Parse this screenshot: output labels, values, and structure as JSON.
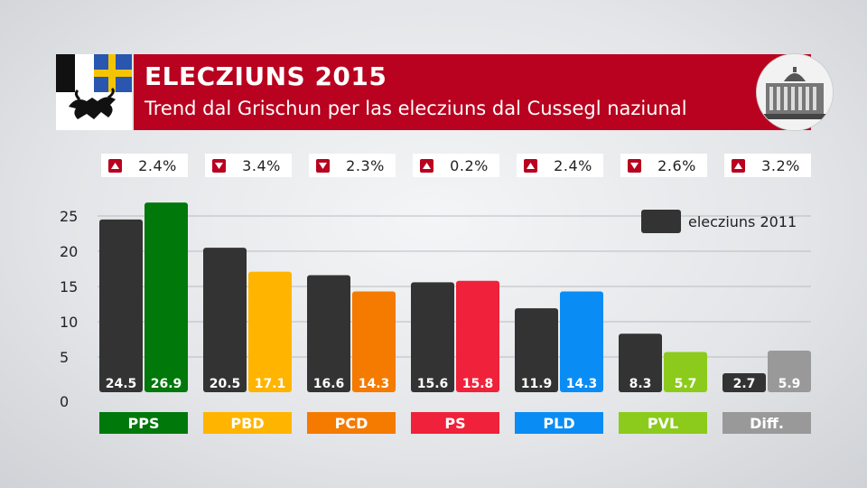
{
  "header": {
    "title": "ELECZIUNS 2015",
    "subtitle": "Trend dal Grischun per las elecziuns dal Cussegl naziunal"
  },
  "colors": {
    "banner": "#b8021f",
    "previous": "#333333",
    "PPS": "#00780a",
    "PBD": "#ffb400",
    "PCD": "#f47a00",
    "PS": "#f0213a",
    "PLD": "#0a8cf5",
    "PVL": "#8ccb1c",
    "Diff.": "#999999"
  },
  "legend": {
    "label": "elecziuns 2011"
  },
  "differences": [
    {
      "direction": "up",
      "text": "2.4%"
    },
    {
      "direction": "down",
      "text": "3.4%"
    },
    {
      "direction": "down",
      "text": "2.3%"
    },
    {
      "direction": "up",
      "text": "0.2%"
    },
    {
      "direction": "up",
      "text": "2.4%"
    },
    {
      "direction": "down",
      "text": "2.6%"
    },
    {
      "direction": "up",
      "text": "3.2%"
    }
  ],
  "chart_data": {
    "type": "bar",
    "categories": [
      "PPS",
      "PBD",
      "PCD",
      "PS",
      "PLD",
      "PVL",
      "Diff."
    ],
    "series": [
      {
        "name": "elecziuns 2011",
        "values": [
          24.5,
          20.5,
          16.6,
          15.6,
          11.9,
          8.3,
          2.7
        ]
      },
      {
        "values": [
          26.9,
          17.1,
          14.3,
          15.8,
          14.3,
          5.7,
          5.9
        ]
      }
    ],
    "value_labels": [
      [
        "24.5",
        "20.5",
        "16.6",
        "15.6",
        "11.9",
        "8.3",
        "2.7"
      ],
      [
        "26.9",
        "17.1",
        "14.3",
        "15.8",
        "14.3",
        "5.7",
        "5.9"
      ]
    ],
    "yticks": [
      "0",
      "5",
      "10",
      "15",
      "20",
      "25"
    ],
    "ylim": [
      0,
      27
    ],
    "grid": true,
    "legend_position": "top-right"
  }
}
